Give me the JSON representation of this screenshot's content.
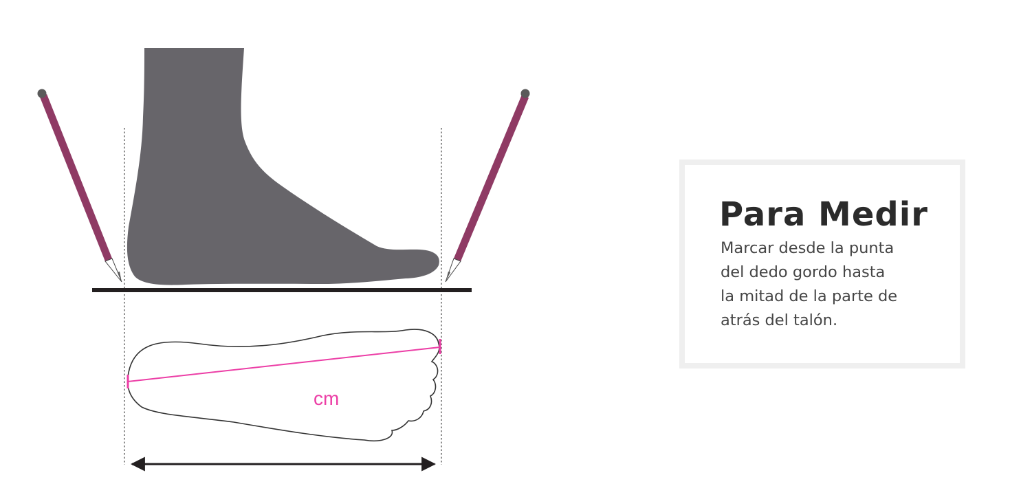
{
  "diagram": {
    "unit_label": "cm",
    "colors": {
      "foot": "#67656a",
      "pencil": "#8f3a64",
      "pencil_tip": "#5a5a5a",
      "measure_line": "#ec3ea6",
      "floor": "#231f20",
      "outline": "#333333"
    }
  },
  "info": {
    "title": "Para Medir",
    "lines": [
      "Marcar desde la punta",
      "del dedo gordo hasta",
      "la mitad de la parte de",
      "atrás del talón."
    ]
  }
}
